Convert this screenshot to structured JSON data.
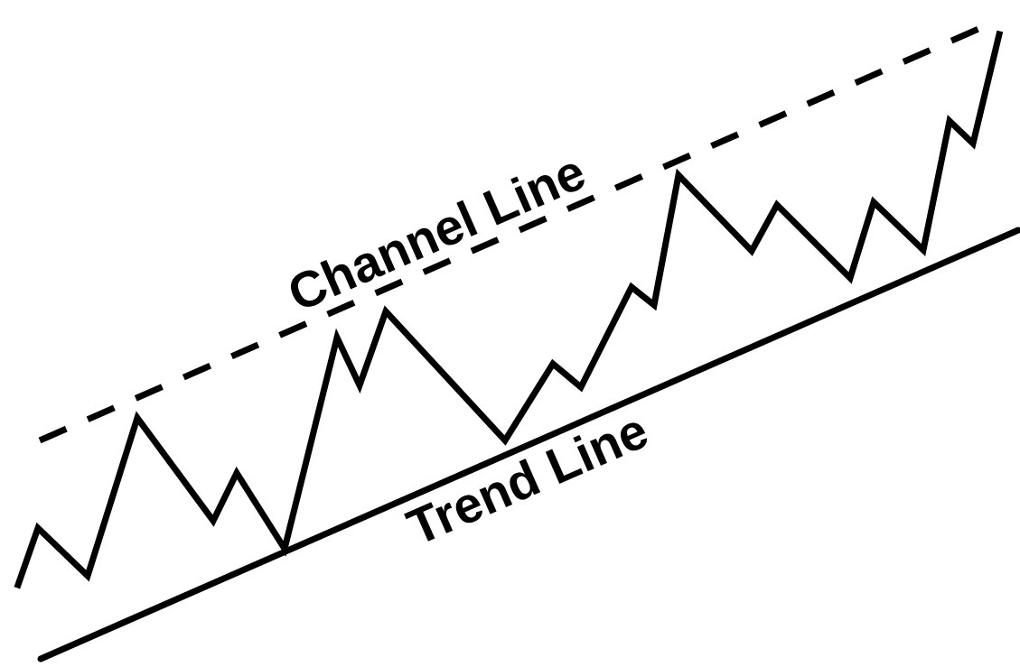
{
  "labels": {
    "channel_line": "Channel Line",
    "trend_line": "Trend Line"
  },
  "colors": {
    "ink": "#000000",
    "background": "#ffffff"
  }
}
